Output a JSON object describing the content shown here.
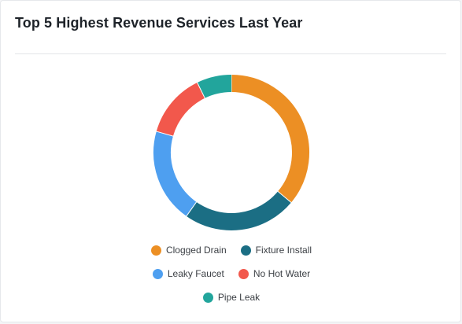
{
  "card": {
    "title": "Top 5 Highest Revenue Services Last Year"
  },
  "chart_data": {
    "type": "pie",
    "variant": "doughnut",
    "title": "Top 5 Highest Revenue Services Last Year",
    "legend_position": "bottom",
    "categories": [
      "Clogged Drain",
      "Fixture Install",
      "Leaky Faucet",
      "No Hot Water",
      "Pipe Leak"
    ],
    "values": [
      35,
      23,
      19,
      13,
      7
    ],
    "colors": [
      "#ec8f24",
      "#1b6e84",
      "#4e9ff0",
      "#f2584c",
      "#22a59c"
    ]
  }
}
